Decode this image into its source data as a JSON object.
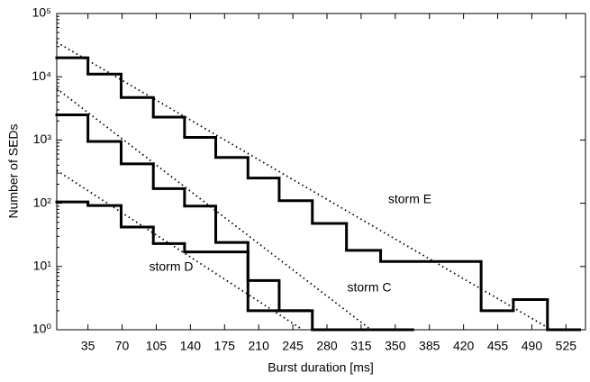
{
  "chart_data": {
    "type": "step",
    "xlabel": "Burst duration [ms]",
    "ylabel": "Number of SEDs",
    "log_y": true,
    "xlim": [
      3,
      545
    ],
    "ylim": [
      1,
      100000
    ],
    "xticks": [
      35,
      70,
      105,
      140,
      175,
      210,
      245,
      280,
      315,
      350,
      385,
      420,
      455,
      490,
      525
    ],
    "yticks": [
      {
        "value": 1,
        "label": "10⁰"
      },
      {
        "value": 10,
        "label": "10¹"
      },
      {
        "value": 100,
        "label": "10²"
      },
      {
        "value": 1000,
        "label": "10³"
      },
      {
        "value": 10000,
        "label": "10⁴"
      },
      {
        "value": 100000,
        "label": "10⁵"
      }
    ],
    "series": [
      {
        "color": "#000000",
        "bins": [
          3,
          35,
          69,
          102,
          134,
          166,
          199,
          231,
          265,
          300,
          335,
          438,
          471,
          506,
          539
        ],
        "values": [
          20000,
          11000,
          4700,
          2300,
          1100,
          530,
          250,
          110,
          48,
          18,
          12,
          2,
          3,
          1
        ]
      },
      {
        "color": "#000000",
        "bins": [
          3,
          35,
          69,
          102,
          134,
          166,
          199,
          231,
          265,
          368
        ],
        "values": [
          2500,
          950,
          420,
          170,
          90,
          24,
          6,
          2,
          1
        ]
      },
      {
        "color": "#000000",
        "bins": [
          3,
          35,
          69,
          102,
          134,
          199,
          262
        ],
        "values": [
          105,
          92,
          42,
          23,
          17,
          2
        ]
      }
    ],
    "fits": [
      {
        "x": [
          3,
          510
        ],
        "values": [
          35000,
          1
        ]
      },
      {
        "x": [
          3,
          325
        ],
        "values": [
          6500,
          1
        ]
      },
      {
        "x": [
          3,
          255
        ],
        "values": [
          330,
          1
        ]
      }
    ],
    "annotations": [
      "storm E",
      "storm C",
      "storm D"
    ]
  }
}
